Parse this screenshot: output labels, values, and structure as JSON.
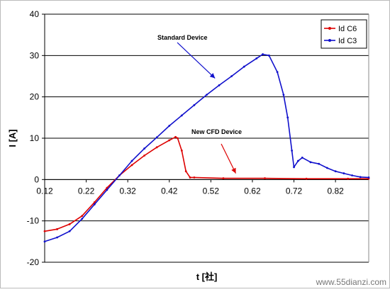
{
  "chart_data": {
    "type": "line",
    "title": "",
    "xlabel": "t [社]",
    "ylabel": "I [A]",
    "xlim": [
      0.12,
      0.9
    ],
    "ylim": [
      -20,
      40
    ],
    "x_ticks": [
      "0.12",
      "0.22",
      "0.32",
      "0.42",
      "0.52",
      "0.62",
      "0.72",
      "0.82"
    ],
    "y_ticks": [
      "40",
      "30",
      "20",
      "10",
      "0",
      "-10",
      "-20"
    ],
    "grid": "horizontal",
    "legend_position": "top-right",
    "series": [
      {
        "name": "Id C6",
        "color": "#dd0000",
        "points": [
          [
            0.12,
            -12.5
          ],
          [
            0.15,
            -12.0
          ],
          [
            0.18,
            -10.8
          ],
          [
            0.21,
            -8.8
          ],
          [
            0.24,
            -5.5
          ],
          [
            0.27,
            -2.0
          ],
          [
            0.3,
            1.0
          ],
          [
            0.33,
            3.5
          ],
          [
            0.36,
            5.8
          ],
          [
            0.39,
            7.8
          ],
          [
            0.42,
            9.5
          ],
          [
            0.435,
            10.3
          ],
          [
            0.44,
            10.0
          ],
          [
            0.45,
            7.0
          ],
          [
            0.46,
            2.0
          ],
          [
            0.47,
            0.5
          ],
          [
            0.48,
            0.5
          ],
          [
            0.55,
            0.3
          ],
          [
            0.65,
            0.3
          ],
          [
            0.75,
            0.2
          ],
          [
            0.85,
            0.2
          ],
          [
            0.9,
            0.2
          ]
        ]
      },
      {
        "name": "Id C3",
        "color": "#1010cc",
        "points": [
          [
            0.12,
            -15.0
          ],
          [
            0.15,
            -14.0
          ],
          [
            0.18,
            -12.5
          ],
          [
            0.21,
            -9.5
          ],
          [
            0.24,
            -6.0
          ],
          [
            0.27,
            -2.5
          ],
          [
            0.3,
            1.0
          ],
          [
            0.33,
            4.5
          ],
          [
            0.36,
            7.5
          ],
          [
            0.39,
            10.2
          ],
          [
            0.42,
            13.0
          ],
          [
            0.45,
            15.5
          ],
          [
            0.48,
            18.0
          ],
          [
            0.51,
            20.5
          ],
          [
            0.54,
            22.8
          ],
          [
            0.57,
            25.0
          ],
          [
            0.6,
            27.3
          ],
          [
            0.63,
            29.3
          ],
          [
            0.645,
            30.3
          ],
          [
            0.66,
            30.0
          ],
          [
            0.68,
            26.0
          ],
          [
            0.695,
            20.5
          ],
          [
            0.705,
            15.0
          ],
          [
            0.715,
            7.0
          ],
          [
            0.72,
            3.0
          ],
          [
            0.73,
            4.5
          ],
          [
            0.74,
            5.3
          ],
          [
            0.76,
            4.2
          ],
          [
            0.78,
            3.8
          ],
          [
            0.8,
            2.8
          ],
          [
            0.82,
            2.0
          ],
          [
            0.84,
            1.5
          ],
          [
            0.86,
            1.0
          ],
          [
            0.88,
            0.6
          ],
          [
            0.9,
            0.5
          ]
        ]
      }
    ],
    "annotations": [
      {
        "text": "Standard Device",
        "arrow_to": [
          0.53,
          24.5
        ]
      },
      {
        "text": "New CFD Device",
        "arrow_to": [
          0.58,
          1.5
        ]
      }
    ]
  },
  "watermark": "www.55dianzi.com"
}
